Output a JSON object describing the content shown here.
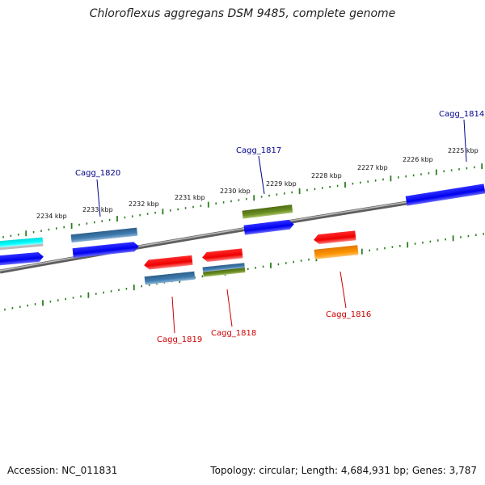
{
  "title": "Chloroflexus aggregans DSM 9485, complete genome",
  "footer": {
    "accession": "Accession: NC_011831",
    "summary": "Topology: circular; Length: 4,684,931 bp; Genes: 3,787"
  },
  "colors": {
    "backbone": "#8a8a8a",
    "ruler": "#2a7d1e",
    "label_forward": "#00008b",
    "label_reverse": "#cc0000"
  },
  "scale_labels": [
    "2234 kbp",
    "2233 kbp",
    "2232 kbp",
    "2231 kbp",
    "2230 kbp",
    "2229 kbp",
    "2228 kbp",
    "2227 kbp",
    "2226 kbp",
    "2225 kbp"
  ],
  "gene_labels": [
    {
      "text": "Cagg_1814",
      "strand": "forward"
    },
    {
      "text": "Cagg_1817",
      "strand": "forward"
    },
    {
      "text": "Cagg_1820",
      "strand": "forward"
    },
    {
      "text": "Cagg_1819",
      "strand": "reverse"
    },
    {
      "text": "Cagg_1818",
      "strand": "reverse"
    },
    {
      "text": "Cagg_1816",
      "strand": "reverse"
    }
  ]
}
